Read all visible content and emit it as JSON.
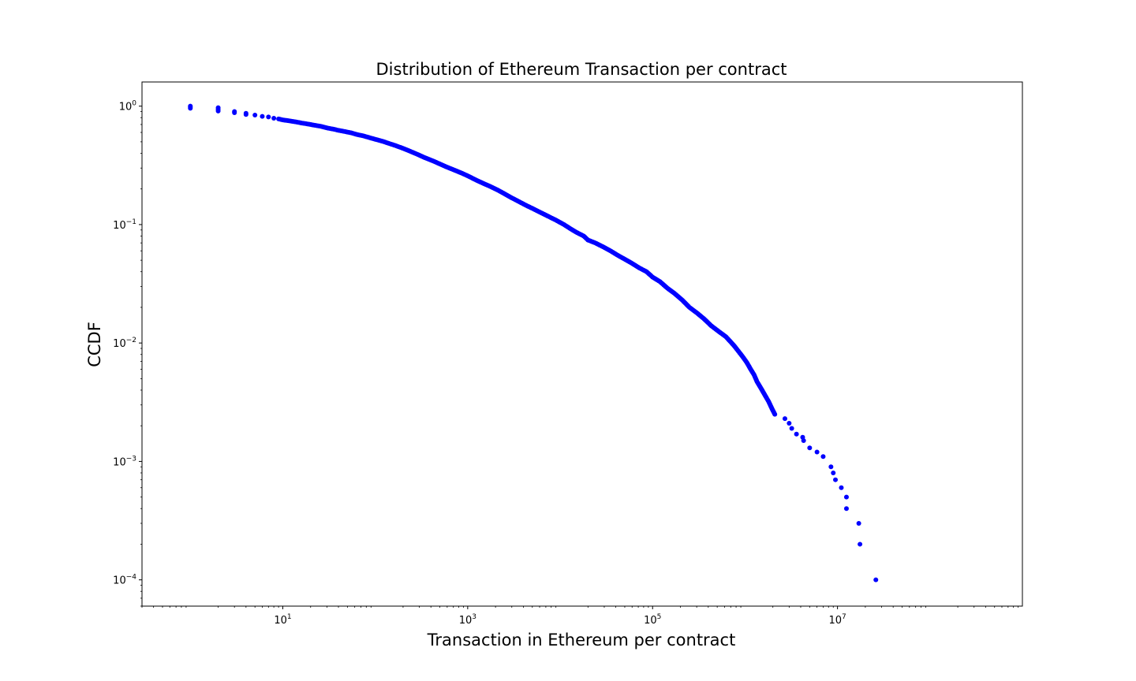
{
  "chart_data": {
    "type": "scatter",
    "title": "Distribution of Ethereum Transaction per contract",
    "xlabel": "Transaction in Ethereum per contract",
    "ylabel": "CCDF",
    "xscale": "log",
    "yscale": "log",
    "xlim": [
      0.3,
      1000000000
    ],
    "ylim": [
      6e-05,
      1.6
    ],
    "grid": false,
    "legend": "none",
    "marker_color": "#0000ff",
    "x_ticks": [
      {
        "value": 10,
        "base": "10",
        "exp": "1"
      },
      {
        "value": 1000,
        "base": "10",
        "exp": "3"
      },
      {
        "value": 100000,
        "base": "10",
        "exp": "5"
      },
      {
        "value": 10000000,
        "base": "10",
        "exp": "7"
      }
    ],
    "y_ticks": [
      {
        "value": 1,
        "base": "10",
        "exp": "0"
      },
      {
        "value": 0.1,
        "base": "10",
        "exp": "−1"
      },
      {
        "value": 0.01,
        "base": "10",
        "exp": "−2"
      },
      {
        "value": 0.001,
        "base": "10",
        "exp": "−3"
      },
      {
        "value": 0.0001,
        "base": "10",
        "exp": "−4"
      }
    ],
    "series": [
      {
        "points": [
          [
            1,
            1.0
          ],
          [
            1,
            0.98
          ],
          [
            1,
            0.96
          ],
          [
            2,
            0.97
          ],
          [
            2,
            0.94
          ],
          [
            2,
            0.91
          ],
          [
            3,
            0.9
          ],
          [
            3,
            0.88
          ],
          [
            4,
            0.87
          ],
          [
            4,
            0.85
          ],
          [
            5,
            0.84
          ],
          [
            6,
            0.82
          ],
          [
            7,
            0.81
          ],
          [
            8,
            0.79
          ],
          [
            9,
            0.78
          ],
          [
            10,
            0.765
          ],
          [
            12,
            0.75
          ],
          [
            14,
            0.735
          ],
          [
            16,
            0.72
          ],
          [
            19,
            0.705
          ],
          [
            22,
            0.69
          ],
          [
            26,
            0.675
          ],
          [
            30,
            0.655
          ],
          [
            35,
            0.64
          ],
          [
            40,
            0.625
          ],
          [
            47,
            0.61
          ],
          [
            55,
            0.595
          ],
          [
            64,
            0.575
          ],
          [
            75,
            0.56
          ],
          [
            88,
            0.54
          ],
          [
            100,
            0.525
          ],
          [
            120,
            0.505
          ],
          [
            140,
            0.485
          ],
          [
            165,
            0.465
          ],
          [
            200,
            0.44
          ],
          [
            240,
            0.415
          ],
          [
            290,
            0.39
          ],
          [
            350,
            0.365
          ],
          [
            420,
            0.345
          ],
          [
            500,
            0.325
          ],
          [
            600,
            0.305
          ],
          [
            720,
            0.288
          ],
          [
            860,
            0.272
          ],
          [
            1000,
            0.258
          ],
          [
            1200,
            0.24
          ],
          [
            1450,
            0.224
          ],
          [
            1750,
            0.21
          ],
          [
            2100,
            0.196
          ],
          [
            2500,
            0.182
          ],
          [
            3000,
            0.168
          ],
          [
            3600,
            0.156
          ],
          [
            4300,
            0.145
          ],
          [
            5200,
            0.135
          ],
          [
            6200,
            0.126
          ],
          [
            7500,
            0.117
          ],
          [
            9000,
            0.109
          ],
          [
            11000,
            0.1
          ],
          [
            13000,
            0.092
          ],
          [
            15000,
            0.086
          ],
          [
            18000,
            0.08
          ],
          [
            20000,
            0.074
          ],
          [
            24000,
            0.07
          ],
          [
            29000,
            0.065
          ],
          [
            35000,
            0.06
          ],
          [
            42000,
            0.055
          ],
          [
            50000,
            0.051
          ],
          [
            60000,
            0.047
          ],
          [
            72000,
            0.043
          ],
          [
            86000,
            0.04
          ],
          [
            100000,
            0.036
          ],
          [
            120000,
            0.033
          ],
          [
            145000,
            0.029
          ],
          [
            175000,
            0.026
          ],
          [
            210000,
            0.023
          ],
          [
            250000,
            0.02
          ],
          [
            300000,
            0.018
          ],
          [
            360000,
            0.016
          ],
          [
            430000,
            0.014
          ],
          [
            520000,
            0.0125
          ],
          [
            620000,
            0.0113
          ],
          [
            700000,
            0.0102
          ],
          [
            760000,
            0.0095
          ],
          [
            850000,
            0.0085
          ],
          [
            950000,
            0.0076
          ],
          [
            1050000,
            0.0068
          ],
          [
            1150000,
            0.006
          ],
          [
            1250000,
            0.0054
          ],
          [
            1350000,
            0.0047
          ],
          [
            1500000,
            0.0041
          ],
          [
            1650000,
            0.0036
          ],
          [
            1800000,
            0.0032
          ],
          [
            1950000,
            0.0028
          ],
          [
            2100000,
            0.0025
          ],
          [
            2700000,
            0.0023
          ],
          [
            3000000,
            0.0021
          ],
          [
            3200000,
            0.0019
          ],
          [
            3600000,
            0.0017
          ],
          [
            4200000,
            0.0016
          ],
          [
            4300000,
            0.0015
          ],
          [
            5000000,
            0.0013
          ],
          [
            6000000,
            0.0012
          ],
          [
            7000000,
            0.0011
          ],
          [
            8500000,
            0.0009
          ],
          [
            9000000,
            0.0008
          ],
          [
            9500000,
            0.0007
          ],
          [
            11000000,
            0.0006
          ],
          [
            12500000,
            0.0005
          ],
          [
            12500000,
            0.0004
          ],
          [
            17000000,
            0.0003
          ],
          [
            17500000,
            0.0002
          ],
          [
            26000000,
            0.0001
          ]
        ]
      }
    ]
  }
}
